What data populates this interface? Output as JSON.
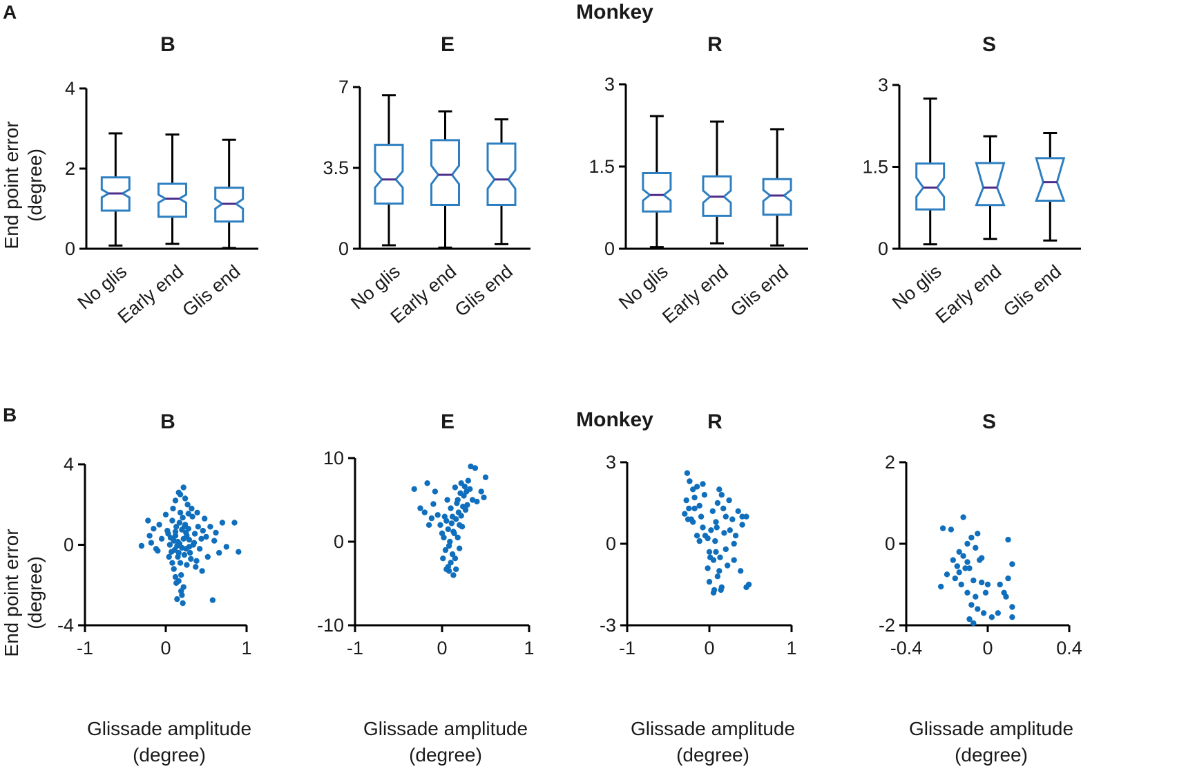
{
  "panels": {
    "A": {
      "letter": "A",
      "title": "Monkey"
    },
    "B": {
      "letter": "B",
      "title": "Monkey"
    }
  },
  "ylabel": {
    "line1": "End point error",
    "line2": "(degree)"
  },
  "xlabel": {
    "line1": "Glissade amplitude",
    "line2": "(degree)"
  },
  "chart_data": [
    {
      "type": "box",
      "panel": "A",
      "title": "B",
      "categories": [
        "No glis",
        "Early end",
        "Glis end"
      ],
      "ylim": [
        0,
        4
      ],
      "yticks": [
        "0",
        "2",
        "4"
      ],
      "boxes": [
        {
          "min": 0.08,
          "q1": 0.95,
          "median": 1.38,
          "q3": 1.78,
          "max": 2.88,
          "notch_lo": 1.28,
          "notch_hi": 1.48
        },
        {
          "min": 0.12,
          "q1": 0.8,
          "median": 1.25,
          "q3": 1.62,
          "max": 2.85,
          "notch_lo": 1.15,
          "notch_hi": 1.35
        },
        {
          "min": 0.02,
          "q1": 0.68,
          "median": 1.12,
          "q3": 1.52,
          "max": 2.72,
          "notch_lo": 1.0,
          "notch_hi": 1.24
        }
      ]
    },
    {
      "type": "box",
      "panel": "A",
      "title": "E",
      "categories": [
        "No glis",
        "Early end",
        "Glis end"
      ],
      "ylim": [
        0,
        7
      ],
      "yticks": [
        "0",
        "3.5",
        "7"
      ],
      "boxes": [
        {
          "min": 0.15,
          "q1": 1.95,
          "median": 3.0,
          "q3": 4.5,
          "max": 6.65,
          "notch_lo": 2.65,
          "notch_hi": 3.35
        },
        {
          "min": 0.05,
          "q1": 1.9,
          "median": 3.2,
          "q3": 4.7,
          "max": 5.95,
          "notch_lo": 2.8,
          "notch_hi": 3.6
        },
        {
          "min": 0.2,
          "q1": 1.9,
          "median": 3.0,
          "q3": 4.55,
          "max": 5.6,
          "notch_lo": 2.6,
          "notch_hi": 3.4
        }
      ]
    },
    {
      "type": "box",
      "panel": "A",
      "title": "R",
      "categories": [
        "No glis",
        "Early end",
        "Glis end"
      ],
      "ylim": [
        0,
        3
      ],
      "yticks": [
        "0",
        "1.5",
        "3"
      ],
      "boxes": [
        {
          "min": 0.03,
          "q1": 0.68,
          "median": 0.98,
          "q3": 1.38,
          "max": 2.42,
          "notch_lo": 0.88,
          "notch_hi": 1.08
        },
        {
          "min": 0.1,
          "q1": 0.6,
          "median": 0.95,
          "q3": 1.32,
          "max": 2.32,
          "notch_lo": 0.84,
          "notch_hi": 1.06
        },
        {
          "min": 0.06,
          "q1": 0.62,
          "median": 0.97,
          "q3": 1.27,
          "max": 2.18,
          "notch_lo": 0.87,
          "notch_hi": 1.07
        }
      ]
    },
    {
      "type": "box",
      "panel": "A",
      "title": "S",
      "categories": [
        "No glis",
        "Early end",
        "Glis end"
      ],
      "ylim": [
        0,
        3
      ],
      "yticks": [
        "0",
        "1.5",
        "3"
      ],
      "boxes": [
        {
          "min": 0.08,
          "q1": 0.72,
          "median": 1.12,
          "q3": 1.56,
          "max": 2.75,
          "notch_lo": 0.95,
          "notch_hi": 1.3
        },
        {
          "min": 0.18,
          "q1": 0.8,
          "median": 1.12,
          "q3": 1.57,
          "max": 2.06,
          "notch_lo": 0.78,
          "notch_hi": 1.6
        },
        {
          "min": 0.15,
          "q1": 0.88,
          "median": 1.22,
          "q3": 1.66,
          "max": 2.12,
          "notch_lo": 0.88,
          "notch_hi": 1.66
        }
      ]
    },
    {
      "type": "scatter",
      "panel": "B",
      "title": "B",
      "xlim": [
        -1,
        1
      ],
      "ylim": [
        -4,
        4
      ],
      "xticks": [
        "-1",
        "0",
        "1"
      ],
      "yticks": [
        "-4",
        "0",
        "4"
      ],
      "points": [
        [
          0.12,
          0.45
        ],
        [
          0.2,
          -0.15
        ],
        [
          0.28,
          0.8
        ],
        [
          0.08,
          1.2
        ],
        [
          0.35,
          0.1
        ],
        [
          0.15,
          -0.6
        ],
        [
          0.22,
          0.3
        ],
        [
          0.05,
          0.0
        ],
        [
          0.18,
          1.6
        ],
        [
          0.3,
          -0.4
        ],
        [
          0.1,
          -1.2
        ],
        [
          0.25,
          0.6
        ],
        [
          0.4,
          0.9
        ],
        [
          0.02,
          0.7
        ],
        [
          0.16,
          -1.8
        ],
        [
          0.19,
          -2.3
        ],
        [
          0.14,
          -2.7
        ],
        [
          0.21,
          -2.9
        ],
        [
          0.12,
          2.2
        ],
        [
          0.18,
          2.5
        ],
        [
          0.22,
          2.85
        ],
        [
          0.5,
          0.4
        ],
        [
          0.6,
          0.2
        ],
        [
          0.7,
          1.1
        ],
        [
          0.75,
          -0.1
        ],
        [
          0.85,
          1.1
        ],
        [
          0.9,
          -0.35
        ],
        [
          0.58,
          -2.75
        ],
        [
          0.45,
          -1.3
        ],
        [
          0.38,
          -0.8
        ],
        [
          -0.05,
          0.3
        ],
        [
          -0.15,
          0.8
        ],
        [
          -0.22,
          1.2
        ],
        [
          -0.3,
          -0.05
        ],
        [
          -0.1,
          -0.3
        ],
        [
          -0.2,
          0.45
        ],
        [
          0.0,
          1.5
        ],
        [
          0.26,
          -1.0
        ],
        [
          0.33,
          1.4
        ],
        [
          0.08,
          -0.9
        ],
        [
          0.13,
          0.9
        ],
        [
          0.17,
          0.05
        ],
        [
          0.23,
          -0.5
        ],
        [
          0.29,
          0.25
        ],
        [
          0.36,
          0.55
        ],
        [
          0.42,
          -0.2
        ],
        [
          0.06,
          0.35
        ],
        [
          0.11,
          -0.25
        ],
        [
          0.24,
          1.0
        ],
        [
          0.31,
          -0.7
        ],
        [
          0.19,
          -1.5
        ],
        [
          0.09,
          1.8
        ],
        [
          0.27,
          2.0
        ],
        [
          0.15,
          0.15
        ],
        [
          0.2,
          0.75
        ],
        [
          0.16,
          -0.4
        ],
        [
          0.25,
          -0.2
        ],
        [
          0.04,
          -0.6
        ],
        [
          0.12,
          -1.6
        ],
        [
          0.22,
          -2.1
        ],
        [
          0.55,
          0.9
        ],
        [
          0.48,
          1.3
        ],
        [
          0.62,
          0.6
        ],
        [
          0.66,
          -0.4
        ],
        [
          -0.08,
          1.0
        ],
        [
          -0.12,
          -0.2
        ],
        [
          0.32,
          1.8
        ],
        [
          0.37,
          -1.1
        ],
        [
          0.03,
          0.55
        ],
        [
          0.21,
          1.35
        ],
        [
          0.14,
          -0.05
        ],
        [
          0.26,
          0.45
        ],
        [
          0.18,
          -0.9
        ],
        [
          0.1,
          0.2
        ],
        [
          0.34,
          0.0
        ],
        [
          0.44,
          0.3
        ],
        [
          0.07,
          -0.35
        ],
        [
          0.17,
          1.1
        ],
        [
          0.23,
          0.9
        ],
        [
          0.29,
          -0.1
        ],
        [
          0.13,
          -1.9
        ],
        [
          0.2,
          -2.5
        ],
        [
          0.16,
          2.6
        ],
        [
          0.24,
          2.3
        ],
        [
          0.39,
          1.6
        ],
        [
          -0.18,
          0.1
        ],
        [
          0.52,
          -0.6
        ],
        [
          0.46,
          0.7
        ],
        [
          0.12,
          0.65
        ],
        [
          0.28,
          1.55
        ]
      ]
    },
    {
      "type": "scatter",
      "panel": "B",
      "title": "E",
      "xlim": [
        -1,
        1
      ],
      "ylim": [
        -10,
        10
      ],
      "xticks": [
        "-1",
        "0",
        "1"
      ],
      "yticks": [
        "-10",
        "0",
        "10"
      ],
      "points": [
        [
          -0.32,
          6.3
        ],
        [
          -0.25,
          4.0
        ],
        [
          -0.2,
          3.5
        ],
        [
          -0.15,
          2.0
        ],
        [
          -0.1,
          4.5
        ],
        [
          -0.05,
          3.2
        ],
        [
          0.0,
          1.0
        ],
        [
          0.05,
          2.5
        ],
        [
          0.08,
          -0.5
        ],
        [
          0.1,
          4.0
        ],
        [
          0.12,
          3.0
        ],
        [
          0.15,
          6.5
        ],
        [
          0.18,
          5.0
        ],
        [
          0.2,
          2.0
        ],
        [
          0.22,
          7.0
        ],
        [
          0.25,
          5.5
        ],
        [
          0.28,
          6.0
        ],
        [
          0.3,
          7.3
        ],
        [
          0.33,
          9.0
        ],
        [
          0.38,
          8.8
        ],
        [
          0.45,
          6.0
        ],
        [
          0.5,
          7.7
        ],
        [
          0.48,
          5.3
        ],
        [
          0.4,
          4.8
        ],
        [
          0.12,
          -1.5
        ],
        [
          0.1,
          -2.5
        ],
        [
          0.08,
          -3.5
        ],
        [
          0.05,
          -3.3
        ],
        [
          0.13,
          -4.0
        ],
        [
          0.16,
          -3.3
        ],
        [
          0.02,
          0.5
        ],
        [
          -0.02,
          2.0
        ],
        [
          0.07,
          1.5
        ],
        [
          0.14,
          1.0
        ],
        [
          0.19,
          3.5
        ],
        [
          0.24,
          4.2
        ],
        [
          0.27,
          3.8
        ],
        [
          0.06,
          5.0
        ],
        [
          -0.08,
          6.0
        ],
        [
          -0.17,
          7.0
        ],
        [
          0.04,
          -1.0
        ],
        [
          0.09,
          0.0
        ],
        [
          0.11,
          2.2
        ],
        [
          0.17,
          4.6
        ],
        [
          0.21,
          5.8
        ],
        [
          0.26,
          6.6
        ],
        [
          0.32,
          6.3
        ],
        [
          0.35,
          5.0
        ],
        [
          0.03,
          3.0
        ],
        [
          -0.12,
          2.8
        ],
        [
          0.15,
          -2.0
        ],
        [
          0.18,
          0.5
        ],
        [
          0.2,
          -0.8
        ],
        [
          0.23,
          1.8
        ],
        [
          0.29,
          4.4
        ],
        [
          0.01,
          -2.0
        ],
        [
          0.07,
          -3.0
        ],
        [
          0.13,
          1.2
        ],
        [
          0.16,
          2.7
        ],
        [
          0.22,
          3.1
        ]
      ]
    },
    {
      "type": "scatter",
      "panel": "B",
      "title": "R",
      "xlim": [
        -1,
        1
      ],
      "ylim": [
        -3,
        3
      ],
      "xticks": [
        "-1",
        "0",
        "1"
      ],
      "yticks": [
        "-3",
        "0",
        "3"
      ],
      "points": [
        [
          -0.27,
          2.6
        ],
        [
          -0.24,
          2.3
        ],
        [
          -0.2,
          2.0
        ],
        [
          -0.25,
          1.3
        ],
        [
          -0.28,
          1.6
        ],
        [
          -0.3,
          1.1
        ],
        [
          -0.22,
          0.9
        ],
        [
          -0.18,
          1.7
        ],
        [
          -0.15,
          2.1
        ],
        [
          -0.12,
          1.4
        ],
        [
          -0.1,
          1.0
        ],
        [
          -0.08,
          0.6
        ],
        [
          -0.05,
          0.3
        ],
        [
          -0.2,
          0.8
        ],
        [
          -0.15,
          0.3
        ],
        [
          0.0,
          -0.3
        ],
        [
          0.05,
          -0.6
        ],
        [
          0.08,
          0.8
        ],
        [
          0.1,
          1.5
        ],
        [
          0.12,
          -1.0
        ],
        [
          0.15,
          -1.6
        ],
        [
          0.05,
          -1.8
        ],
        [
          0.1,
          -1.2
        ],
        [
          0.2,
          1.0
        ],
        [
          0.25,
          0.5
        ],
        [
          0.3,
          0.0
        ],
        [
          0.35,
          1.2
        ],
        [
          0.4,
          0.7
        ],
        [
          0.45,
          1.0
        ],
        [
          0.48,
          -1.5
        ],
        [
          0.45,
          -1.6
        ],
        [
          0.38,
          -1.0
        ],
        [
          0.3,
          -0.6
        ],
        [
          0.2,
          -0.2
        ],
        [
          0.15,
          1.8
        ],
        [
          0.12,
          2.0
        ],
        [
          0.08,
          -0.3
        ],
        [
          0.02,
          0.5
        ],
        [
          -0.02,
          -0.9
        ],
        [
          0.0,
          -1.4
        ],
        [
          0.06,
          -1.7
        ],
        [
          0.14,
          -1.7
        ],
        [
          0.18,
          0.4
        ],
        [
          0.22,
          -0.8
        ],
        [
          0.28,
          0.9
        ],
        [
          0.32,
          0.3
        ],
        [
          0.4,
          1.0
        ],
        [
          -0.08,
          2.2
        ],
        [
          -0.12,
          0.1
        ],
        [
          -0.02,
          0.2
        ],
        [
          0.04,
          1.2
        ],
        [
          0.09,
          0.6
        ],
        [
          0.13,
          -0.5
        ],
        [
          0.17,
          1.3
        ],
        [
          0.24,
          1.6
        ],
        [
          -0.18,
          1.3
        ],
        [
          -0.26,
          0.9
        ],
        [
          -0.06,
          1.8
        ],
        [
          0.01,
          -0.5
        ],
        [
          0.07,
          0.1
        ]
      ]
    },
    {
      "type": "scatter",
      "panel": "B",
      "title": "S",
      "xlim": [
        -0.4,
        0.4
      ],
      "ylim": [
        -2,
        2
      ],
      "xticks": [
        "-0.4",
        "0",
        "0.4"
      ],
      "yticks": [
        "-2",
        "0",
        "2"
      ],
      "points": [
        [
          -0.22,
          0.38
        ],
        [
          -0.18,
          0.35
        ],
        [
          -0.23,
          -1.05
        ],
        [
          -0.2,
          -0.75
        ],
        [
          -0.15,
          -0.55
        ],
        [
          -0.12,
          -0.3
        ],
        [
          -0.1,
          0.0
        ],
        [
          -0.08,
          0.15
        ],
        [
          -0.09,
          -0.6
        ],
        [
          -0.07,
          -0.9
        ],
        [
          -0.06,
          -1.3
        ],
        [
          -0.05,
          -1.6
        ],
        [
          -0.12,
          0.65
        ],
        [
          -0.14,
          -0.2
        ],
        [
          -0.1,
          -1.2
        ],
        [
          -0.08,
          -1.5
        ],
        [
          -0.04,
          -0.4
        ],
        [
          -0.02,
          -1.7
        ],
        [
          0.02,
          -1.8
        ],
        [
          0.05,
          -1.7
        ],
        [
          0.08,
          -1.2
        ],
        [
          0.1,
          -0.85
        ],
        [
          0.12,
          -1.55
        ],
        [
          0.12,
          -1.8
        ],
        [
          0.12,
          -0.5
        ],
        [
          0.1,
          0.1
        ],
        [
          -0.03,
          -0.35
        ],
        [
          0.0,
          -1.0
        ],
        [
          -0.05,
          0.25
        ],
        [
          -0.03,
          -0.95
        ],
        [
          -0.11,
          -0.6
        ],
        [
          -0.13,
          -1.0
        ],
        [
          -0.16,
          -0.85
        ],
        [
          -0.17,
          -0.4
        ],
        [
          -0.06,
          -0.1
        ],
        [
          -0.09,
          -1.85
        ],
        [
          -0.07,
          -1.95
        ],
        [
          0.06,
          -1.0
        ],
        [
          0.09,
          -1.3
        ],
        [
          -0.01,
          -1.2
        ],
        [
          -0.14,
          -0.7
        ],
        [
          -0.1,
          -0.45
        ]
      ]
    }
  ]
}
